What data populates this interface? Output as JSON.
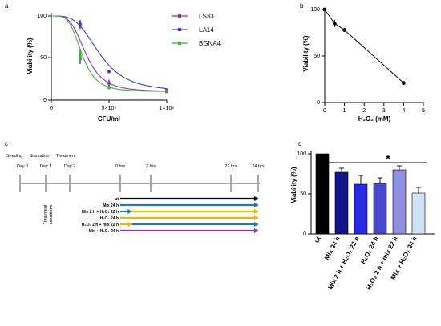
{
  "panels": {
    "a": {
      "letter": "a",
      "chart_data": {
        "type": "line",
        "xlabel": "CFU/ml",
        "ylabel": "Viability (%)",
        "xlim": [
          0,
          1000000000
        ],
        "ylim": [
          0,
          100
        ],
        "x_ticks": [
          "0",
          "5×10⁸",
          "1×10⁹"
        ],
        "y_ticks": [
          "0",
          "50",
          "100"
        ],
        "legend_position": "top-right",
        "series": [
          {
            "name": "LS33",
            "color": "#9b2fae",
            "ic50": 300000000,
            "hill": 4,
            "points": [
              {
                "x": 250000000,
                "y": 49,
                "err": 6
              },
              {
                "x": 500000000,
                "y": 20,
                "err": 4
              },
              {
                "x": 1000000000,
                "y": 10,
                "err": 1
              }
            ]
          },
          {
            "name": "LA14",
            "color": "#3b3bc4",
            "ic50": 420000000,
            "hill": 3.6,
            "points": [
              {
                "x": 250000000,
                "y": 90,
                "err": 5
              },
              {
                "x": 500000000,
                "y": 34,
                "err": 2
              },
              {
                "x": 1000000000,
                "y": 12,
                "err": 1
              }
            ]
          },
          {
            "name": "BGNA4",
            "color": "#36b336",
            "ic50": 265000000,
            "hill": 4.3,
            "points": [
              {
                "x": 250000000,
                "y": 52,
                "err": 8
              },
              {
                "x": 500000000,
                "y": 15,
                "err": 2
              },
              {
                "x": 1000000000,
                "y": 11,
                "err": 1
              }
            ]
          }
        ]
      }
    },
    "b": {
      "letter": "b",
      "chart_data": {
        "type": "line",
        "xlabel": "H₂O₂ (mM)",
        "ylabel": "Viability (%)",
        "xlim": [
          0,
          5
        ],
        "ylim": [
          0,
          100
        ],
        "x_ticks": [
          "0",
          "1",
          "2",
          "3",
          "4",
          "5"
        ],
        "y_ticks": [
          "0",
          "50",
          "100"
        ],
        "series": [
          {
            "color": "#000000",
            "points": [
              {
                "x": 0,
                "y": 100,
                "err": 1
              },
              {
                "x": 0.5,
                "y": 85,
                "err": 4
              },
              {
                "x": 1,
                "y": 78,
                "err": 2
              },
              {
                "x": 4,
                "y": 21,
                "err": 1
              }
            ]
          }
        ]
      }
    },
    "c": {
      "letter": "c",
      "phases": [
        "Seeding",
        "Starvation",
        "Treatment"
      ],
      "days": [
        "Day 0",
        "Day 1",
        "Day 2"
      ],
      "hours": [
        "0 hrs",
        "2 hrs",
        "22 hrs",
        "24 hrs"
      ],
      "side_label": [
        "Treatment",
        "conditions"
      ],
      "colors": {
        "ut": "#000000",
        "mix": "#1f78c8",
        "h2o2": "#f5b400",
        "both": "#7a3fa6"
      },
      "conditions": [
        {
          "label": "ut",
          "segments": [
            {
              "from": 0,
              "to": 24,
              "color": "ut"
            }
          ]
        },
        {
          "label": "Mix 24 h",
          "segments": [
            {
              "from": 0,
              "to": 24,
              "color": "mix"
            }
          ]
        },
        {
          "label": "Mix 2 h + H₂O₂ 22 h",
          "segments": [
            {
              "from": 0,
              "to": 2,
              "color": "mix"
            },
            {
              "from": 2,
              "to": 24,
              "color": "h2o2"
            }
          ]
        },
        {
          "label": "H₂O₂ 24 h",
          "segments": [
            {
              "from": 0,
              "to": 24,
              "color": "h2o2"
            }
          ]
        },
        {
          "label": "H₂O₂ 2 h + mix 22 h",
          "segments": [
            {
              "from": 0,
              "to": 2,
              "color": "h2o2"
            },
            {
              "from": 2,
              "to": 24,
              "color": "mix"
            }
          ]
        },
        {
          "label": "Mix + H₂O₂ 24 h",
          "segments": [
            {
              "from": 0,
              "to": 24,
              "color": "both"
            }
          ]
        }
      ]
    },
    "d": {
      "letter": "d",
      "chart_data": {
        "type": "bar",
        "ylabel": "Viability (%)",
        "ylim": [
          0,
          100
        ],
        "y_ticks": [
          "0",
          "50",
          "100"
        ],
        "significance": "*",
        "categories": [
          "ut",
          "Mix 24 h",
          "Mix 2 h + H₂O₂ 22 h",
          "H₂O₂ 24 h",
          "H₂O₂ 2 h + mix 22 h",
          "Mix + H₂O₂ 24 h"
        ],
        "values": [
          100,
          77,
          62,
          63,
          80,
          51
        ],
        "errors": [
          0,
          5,
          11,
          7,
          5,
          7
        ],
        "colors": [
          "#000000",
          "#14148c",
          "#2a2ae6",
          "#4848cf",
          "#8f8fe0",
          "#cfe3f7"
        ]
      }
    }
  }
}
